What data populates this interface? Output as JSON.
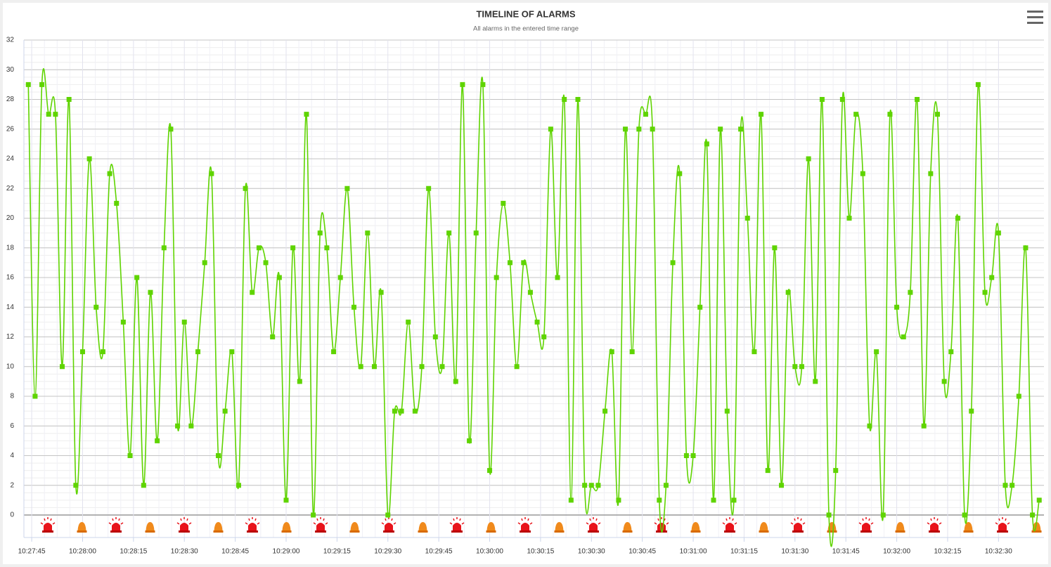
{
  "chart_data": {
    "type": "spline",
    "title": "TIMELINE OF ALARMS",
    "subtitle": "All alarms in the entered time range",
    "x": [
      37664,
      37666,
      37668,
      37670,
      37672,
      37674,
      37676,
      37678,
      37680,
      37682,
      37684,
      37686,
      37688,
      37690,
      37692,
      37694,
      37696,
      37698,
      37700,
      37702,
      37704,
      37706,
      37708,
      37710,
      37712,
      37714,
      37716,
      37718,
      37720,
      37722,
      37724,
      37726,
      37728,
      37730,
      37732,
      37734,
      37736,
      37738,
      37740,
      37742,
      37744,
      37746,
      37748,
      37750,
      37752,
      37754,
      37756,
      37758,
      37760,
      37762,
      37764,
      37766,
      37768,
      37770,
      37772,
      37774,
      37776,
      37778,
      37780,
      37782,
      37784,
      37786,
      37788,
      37790,
      37792,
      37794,
      37796,
      37798,
      37800,
      37802,
      37804,
      37806,
      37808,
      37810,
      37812,
      37814,
      37816,
      37818,
      37820,
      37822,
      37824,
      37826,
      37828,
      37830,
      37832,
      37834,
      37836,
      37838,
      37840,
      37842,
      37844,
      37846,
      37848,
      37850,
      37852,
      37854,
      37856,
      37858,
      37860,
      37862,
      37864,
      37866,
      37868,
      37870,
      37872,
      37874,
      37876,
      37878,
      37880,
      37882,
      37884,
      37886,
      37888,
      37890,
      37892,
      37894,
      37896,
      37898,
      37900,
      37902,
      37904,
      37906,
      37908,
      37910,
      37912,
      37914,
      37916,
      37918,
      37920,
      37922,
      37924,
      37926,
      37928,
      37930,
      37932,
      37934,
      37936,
      37938,
      37940,
      37942,
      37944,
      37946,
      37948,
      37950,
      37952,
      37954,
      37956,
      37958,
      37960,
      37962
    ],
    "values": [
      29,
      8,
      29,
      27,
      27,
      10,
      28,
      2,
      11,
      24,
      14,
      11,
      23,
      21,
      13,
      4,
      16,
      2,
      15,
      5,
      18,
      26,
      6,
      13,
      6,
      11,
      17,
      23,
      4,
      7,
      11,
      2,
      22,
      15,
      18,
      17,
      12,
      16,
      1,
      18,
      9,
      27,
      0,
      19,
      18,
      11,
      16,
      22,
      14,
      10,
      19,
      10,
      15,
      0,
      7,
      7,
      13,
      7,
      10,
      22,
      12,
      10,
      19,
      9,
      29,
      5,
      19,
      29,
      3,
      16,
      21,
      17,
      10,
      17,
      15,
      13,
      12,
      26,
      16,
      28,
      1,
      28,
      2,
      2,
      2,
      7,
      11,
      1,
      26,
      11,
      26,
      27,
      26,
      1,
      2,
      17,
      23,
      4,
      4,
      14,
      25,
      1,
      26,
      7,
      1,
      26,
      20,
      11,
      27,
      3,
      18,
      2,
      15,
      10,
      10,
      24,
      9,
      28,
      0,
      3,
      28,
      20,
      27,
      23,
      6,
      11,
      0,
      27,
      14,
      12,
      15,
      28,
      6,
      23,
      27,
      9,
      11,
      20,
      0,
      7,
      29,
      15,
      16,
      19,
      2,
      2,
      8,
      18,
      0,
      1
    ],
    "color": "#5fd400",
    "xlim": [
      37662.7,
      37963.4
    ],
    "xticks": [
      {
        "value": 37665,
        "label": "10:27:45"
      },
      {
        "value": 37680,
        "label": "10:28:00"
      },
      {
        "value": 37695,
        "label": "10:28:15"
      },
      {
        "value": 37710,
        "label": "10:28:30"
      },
      {
        "value": 37725,
        "label": "10:28:45"
      },
      {
        "value": 37740,
        "label": "10:29:00"
      },
      {
        "value": 37755,
        "label": "10:29:15"
      },
      {
        "value": 37770,
        "label": "10:29:30"
      },
      {
        "value": 37785,
        "label": "10:29:45"
      },
      {
        "value": 37800,
        "label": "10:30:00"
      },
      {
        "value": 37815,
        "label": "10:30:15"
      },
      {
        "value": 37830,
        "label": "10:30:30"
      },
      {
        "value": 37845,
        "label": "10:30:45"
      },
      {
        "value": 37860,
        "label": "10:31:00"
      },
      {
        "value": 37875,
        "label": "10:31:15"
      },
      {
        "value": 37890,
        "label": "10:31:30"
      },
      {
        "value": 37905,
        "label": "10:31:45"
      },
      {
        "value": 37920,
        "label": "10:32:00"
      },
      {
        "value": 37935,
        "label": "10:32:15"
      },
      {
        "value": 37950,
        "label": "10:32:30"
      }
    ],
    "ylim": [
      0,
      32
    ],
    "yticks": [
      0,
      2,
      4,
      6,
      8,
      10,
      12,
      14,
      16,
      18,
      20,
      22,
      24,
      26,
      28,
      30,
      32
    ],
    "grid": true
  }
}
